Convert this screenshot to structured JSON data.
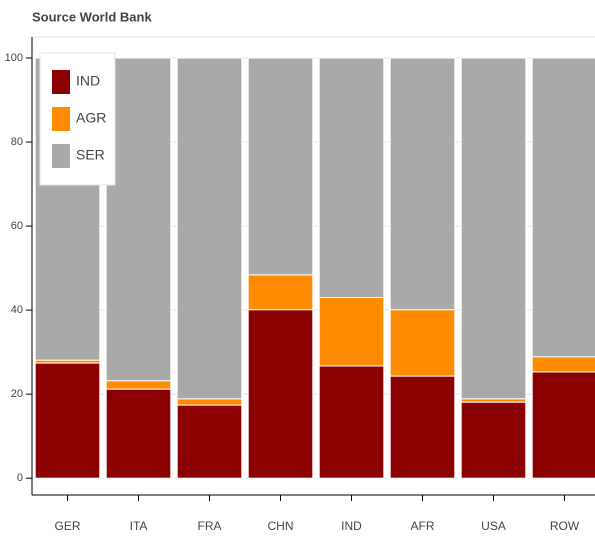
{
  "chart_data": {
    "type": "stacked_bar",
    "title": "Source World Bank",
    "categories": [
      "GER",
      "ITA",
      "FRA",
      "CHN",
      "IND",
      "AFR",
      "USA",
      "ROW"
    ],
    "series": [
      {
        "name": "IND",
        "color": "#8b0000",
        "values": [
          27.4,
          21.2,
          17.4,
          40.1,
          26.7,
          24.3,
          18.1,
          25.3
        ]
      },
      {
        "name": "AGR",
        "color": "#ff8c00",
        "values": [
          0.7,
          2.0,
          1.5,
          8.3,
          16.3,
          15.8,
          0.8,
          3.6
        ]
      },
      {
        "name": "SER",
        "color": "#a9a9a9",
        "values": [
          71.9,
          76.8,
          81.1,
          51.6,
          57.0,
          59.9,
          81.1,
          71.1
        ]
      }
    ],
    "ylim": [
      -4,
      105
    ],
    "yticks": [
      0,
      20,
      40,
      60,
      80,
      100
    ],
    "grid": true,
    "legend": "top-left"
  }
}
